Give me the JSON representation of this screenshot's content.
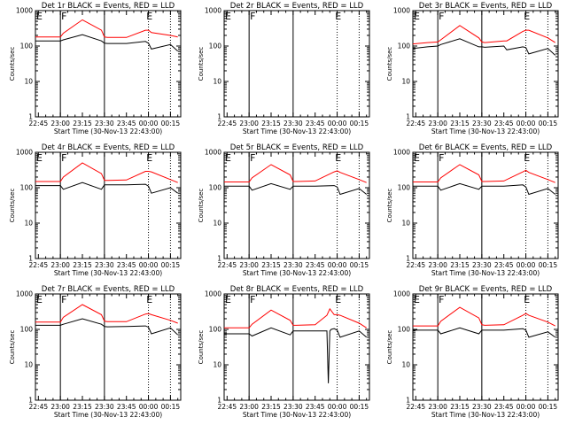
{
  "chart_data": {
    "type": "line",
    "x_tick_labels": [
      "22:45",
      "23:00",
      "23:15",
      "23:30",
      "23:45",
      "00:00",
      "00:15"
    ],
    "x_tick_minutes": [
      0,
      15,
      30,
      45,
      60,
      75,
      90
    ],
    "xlim_minutes": [
      -2,
      97
    ],
    "xlabel": "Start Time (30-Nov-13 22:43:00)",
    "ylabel": "Counts/sec",
    "y_scale": "log",
    "ylim": [
      1,
      1000
    ],
    "y_tick_labels": [
      "1",
      "10",
      "100",
      "1000"
    ],
    "y_tick_values": [
      1,
      10,
      100,
      1000
    ],
    "series_colors": {
      "events": "#000000",
      "lld": "#ff0000"
    },
    "panels": [
      {
        "title": "Det 1r BLACK = Events, RED = LLD",
        "flags": [
          {
            "letter": "E",
            "at_min": -2
          },
          {
            "letter": "F",
            "at_min": 15
          },
          {
            "letter": "E",
            "at_min": 73
          }
        ],
        "solid_lines_min": [
          15,
          45
        ],
        "dotted_lines_min": [
          75,
          90
        ],
        "events": {
          "x": [
            -2,
            15,
            17,
            30,
            43,
            45,
            47,
            60,
            73,
            75,
            77,
            90,
            95
          ],
          "y": [
            140,
            140,
            150,
            210,
            140,
            120,
            118,
            118,
            135,
            120,
            82,
            110,
            72
          ]
        },
        "lld": {
          "x": [
            -2,
            15,
            17,
            30,
            43,
            45,
            47,
            60,
            73,
            75,
            77,
            90,
            95
          ],
          "y": [
            180,
            180,
            230,
            550,
            280,
            180,
            175,
            175,
            280,
            280,
            240,
            200,
            180
          ]
        }
      },
      {
        "title": "Det 2r BLACK = Events, RED = LLD",
        "flags": [
          {
            "letter": "E",
            "at_min": -2
          },
          {
            "letter": "F",
            "at_min": 15
          },
          {
            "letter": "E",
            "at_min": 73
          }
        ],
        "solid_lines_min": [
          15,
          45
        ],
        "dotted_lines_min": [
          75,
          90
        ],
        "events": {
          "x": [],
          "y": []
        },
        "lld": {
          "x": [],
          "y": []
        }
      },
      {
        "title": "Det 3r BLACK = Events, RED = LLD",
        "flags": [
          {
            "letter": "E",
            "at_min": -2
          },
          {
            "letter": "F",
            "at_min": 15
          },
          {
            "letter": "E",
            "at_min": 73
          }
        ],
        "solid_lines_min": [
          15,
          45
        ],
        "dotted_lines_min": [
          75,
          90
        ],
        "events": {
          "x": [
            -2,
            8,
            15,
            17,
            30,
            43,
            45,
            47,
            60,
            62,
            73,
            75,
            77,
            90,
            95
          ],
          "y": [
            85,
            95,
            100,
            110,
            160,
            95,
            95,
            92,
            100,
            78,
            95,
            90,
            60,
            85,
            55
          ]
        },
        "lld": {
          "x": [
            -2,
            8,
            15,
            17,
            30,
            43,
            45,
            47,
            60,
            62,
            73,
            75,
            77,
            90,
            95
          ],
          "y": [
            115,
            125,
            130,
            150,
            380,
            170,
            130,
            125,
            140,
            140,
            260,
            280,
            280,
            170,
            125
          ]
        }
      },
      {
        "title": "Det 4r BLACK = Events, RED = LLD",
        "flags": [
          {
            "letter": "E",
            "at_min": -2
          },
          {
            "letter": "F",
            "at_min": 15
          },
          {
            "letter": "E",
            "at_min": 73
          }
        ],
        "solid_lines_min": [
          15,
          45
        ],
        "dotted_lines_min": [
          75,
          90
        ],
        "events": {
          "x": [
            -2,
            15,
            17,
            30,
            43,
            45,
            47,
            60,
            73,
            75,
            77,
            90,
            95
          ],
          "y": [
            115,
            115,
            90,
            140,
            90,
            120,
            120,
            120,
            125,
            110,
            70,
            100,
            70
          ]
        },
        "lld": {
          "x": [
            -2,
            15,
            17,
            30,
            43,
            45,
            47,
            60,
            73,
            75,
            77,
            90,
            95
          ],
          "y": [
            150,
            150,
            200,
            500,
            250,
            160,
            160,
            165,
            290,
            290,
            280,
            170,
            140
          ]
        }
      },
      {
        "title": "Det 5r BLACK = Events, RED = LLD",
        "flags": [
          {
            "letter": "E",
            "at_min": -2
          },
          {
            "letter": "F",
            "at_min": 15
          },
          {
            "letter": "E",
            "at_min": 73
          }
        ],
        "solid_lines_min": [
          15,
          45
        ],
        "dotted_lines_min": [
          75,
          90
        ],
        "events": {
          "x": [
            -2,
            15,
            17,
            30,
            43,
            45,
            47,
            60,
            73,
            75,
            77,
            90,
            95
          ],
          "y": [
            110,
            110,
            85,
            130,
            90,
            110,
            110,
            110,
            115,
            105,
            65,
            95,
            65
          ]
        },
        "lld": {
          "x": [
            -2,
            15,
            17,
            30,
            43,
            45,
            47,
            60,
            73,
            75,
            77,
            90,
            95
          ],
          "y": [
            145,
            145,
            190,
            450,
            230,
            150,
            150,
            155,
            280,
            300,
            270,
            170,
            140
          ]
        }
      },
      {
        "title": "Det 6r BLACK = Events, RED = LLD",
        "flags": [
          {
            "letter": "E",
            "at_min": -2
          },
          {
            "letter": "F",
            "at_min": 15
          },
          {
            "letter": "E",
            "at_min": 73
          }
        ],
        "solid_lines_min": [
          15,
          45
        ],
        "dotted_lines_min": [
          75,
          90
        ],
        "events": {
          "x": [
            -2,
            15,
            17,
            30,
            43,
            45,
            47,
            60,
            73,
            75,
            77,
            90,
            95
          ],
          "y": [
            110,
            110,
            85,
            130,
            90,
            110,
            110,
            110,
            120,
            105,
            65,
            95,
            65
          ]
        },
        "lld": {
          "x": [
            -2,
            15,
            17,
            30,
            43,
            45,
            47,
            60,
            73,
            75,
            77,
            90,
            95
          ],
          "y": [
            145,
            145,
            190,
            450,
            230,
            150,
            150,
            155,
            280,
            310,
            270,
            170,
            140
          ]
        }
      },
      {
        "title": "Det 7r BLACK = Events, RED = LLD",
        "flags": [
          {
            "letter": "E",
            "at_min": -2
          },
          {
            "letter": "F",
            "at_min": 15
          },
          {
            "letter": "E",
            "at_min": 73
          }
        ],
        "solid_lines_min": [
          15,
          45
        ],
        "dotted_lines_min": [
          75,
          90
        ],
        "events": {
          "x": [
            -2,
            15,
            17,
            30,
            43,
            45,
            47,
            60,
            73,
            75,
            77,
            90,
            95
          ],
          "y": [
            130,
            130,
            140,
            200,
            140,
            120,
            118,
            120,
            125,
            115,
            75,
            110,
            70
          ]
        },
        "lld": {
          "x": [
            -2,
            15,
            17,
            30,
            43,
            45,
            47,
            60,
            73,
            75,
            77,
            90,
            95
          ],
          "y": [
            160,
            160,
            220,
            500,
            260,
            170,
            165,
            165,
            270,
            280,
            260,
            180,
            150
          ]
        }
      },
      {
        "title": "Det 8r BLACK = Events, RED = LLD",
        "flags": [
          {
            "letter": "E",
            "at_min": -2
          },
          {
            "letter": "F",
            "at_min": 15
          },
          {
            "letter": "E",
            "at_min": 73
          }
        ],
        "solid_lines_min": [
          15,
          45
        ],
        "dotted_lines_min": [
          75,
          90
        ],
        "events": {
          "x": [
            -2,
            15,
            17,
            30,
            43,
            45,
            47,
            60,
            68,
            69,
            70,
            71,
            73,
            75,
            77,
            90,
            95
          ],
          "y": [
            75,
            75,
            65,
            110,
            70,
            90,
            90,
            90,
            90,
            3,
            90,
            100,
            105,
            95,
            60,
            90,
            60
          ]
        },
        "lld": {
          "x": [
            -2,
            15,
            17,
            30,
            43,
            45,
            47,
            60,
            68,
            70,
            73,
            75,
            77,
            90,
            95
          ],
          "y": [
            110,
            110,
            140,
            350,
            180,
            130,
            130,
            135,
            250,
            380,
            260,
            260,
            250,
            150,
            110
          ]
        }
      },
      {
        "title": "Det 9r BLACK = Events, RED = LLD",
        "flags": [
          {
            "letter": "E",
            "at_min": -2
          },
          {
            "letter": "F",
            "at_min": 15
          },
          {
            "letter": "E",
            "at_min": 73
          }
        ],
        "solid_lines_min": [
          15,
          45
        ],
        "dotted_lines_min": [
          75,
          90
        ],
        "events": {
          "x": [
            -2,
            15,
            17,
            30,
            43,
            45,
            47,
            60,
            73,
            75,
            77,
            90,
            95
          ],
          "y": [
            95,
            95,
            75,
            110,
            75,
            95,
            95,
            95,
            105,
            95,
            60,
            85,
            60
          ]
        },
        "lld": {
          "x": [
            -2,
            15,
            17,
            30,
            43,
            45,
            47,
            60,
            73,
            75,
            77,
            90,
            95
          ],
          "y": [
            125,
            125,
            170,
            420,
            210,
            135,
            130,
            135,
            250,
            280,
            250,
            160,
            125
          ]
        }
      }
    ]
  }
}
